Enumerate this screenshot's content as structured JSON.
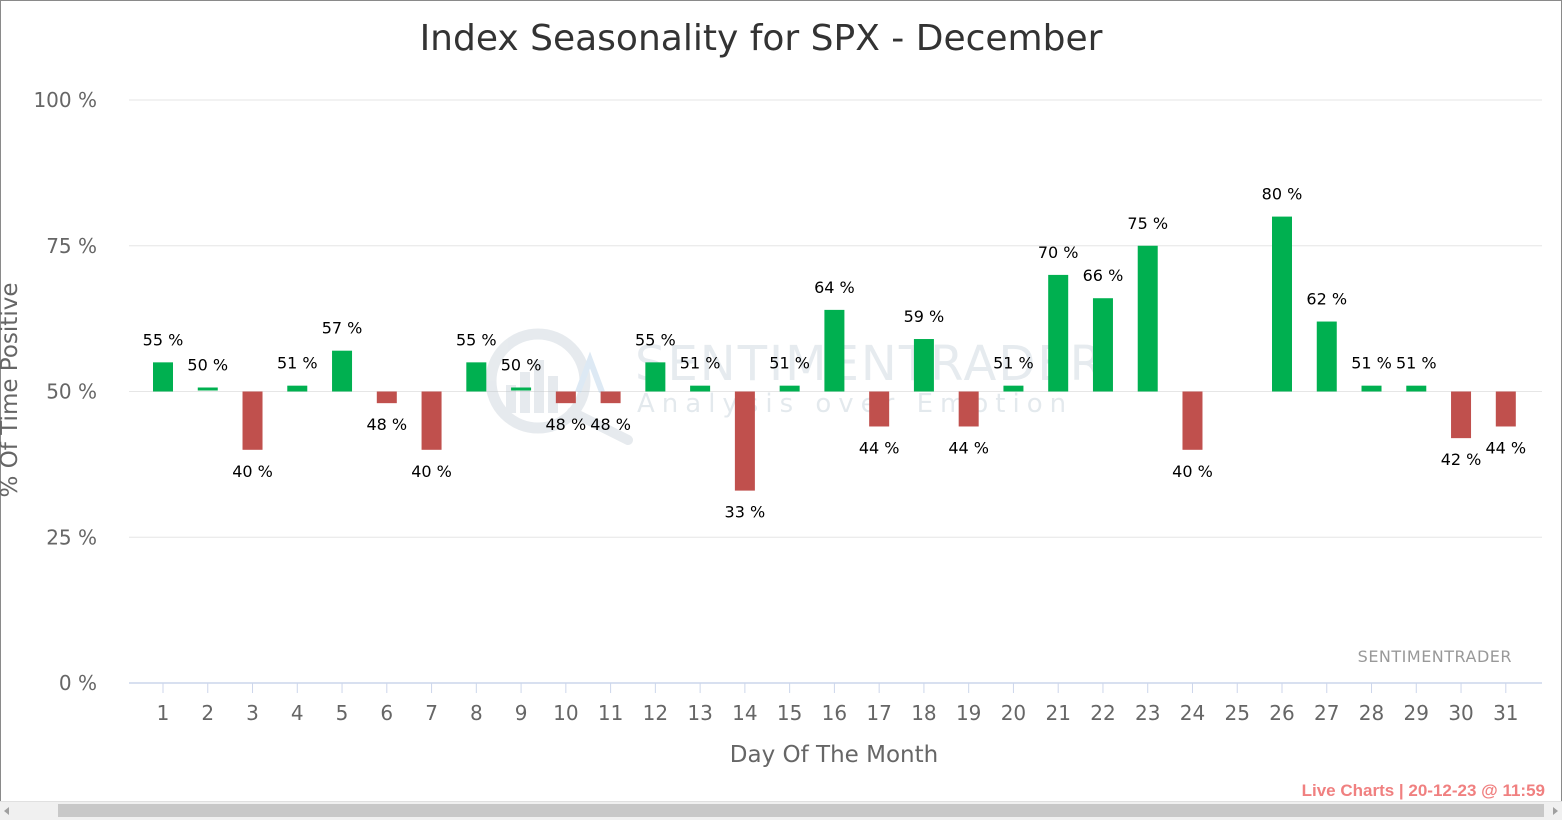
{
  "chart_data": {
    "type": "bar",
    "title": "Index Seasonality for SPX - December",
    "xlabel": "Day Of The Month",
    "ylabel": "% Of Time Positive",
    "ylim": [
      0,
      100
    ],
    "yticks": [
      "0 %",
      "25 %",
      "50 %",
      "75 %",
      "100 %"
    ],
    "baseline": 50,
    "label_suffix": " %",
    "categories": [
      "1",
      "2",
      "3",
      "4",
      "5",
      "6",
      "7",
      "8",
      "9",
      "10",
      "11",
      "12",
      "13",
      "14",
      "15",
      "16",
      "17",
      "18",
      "19",
      "20",
      "21",
      "22",
      "23",
      "24",
      "25",
      "26",
      "27",
      "28",
      "29",
      "30",
      "31"
    ],
    "values": [
      55,
      50,
      40,
      51,
      57,
      48,
      40,
      55,
      50,
      48,
      48,
      55,
      51,
      33,
      51,
      64,
      44,
      59,
      44,
      51,
      70,
      66,
      75,
      40,
      null,
      80,
      62,
      51,
      51,
      42,
      44
    ],
    "colors": {
      "up": "#00b050",
      "down": "#c0504d"
    },
    "grid": true,
    "credit": "SENTIMENTRADER"
  },
  "watermark": {
    "brand": "SENTIMENTRADER",
    "tagline": "Analysis over Emotion"
  },
  "footer": "Live Charts | 20-12-23 @ 11:59"
}
